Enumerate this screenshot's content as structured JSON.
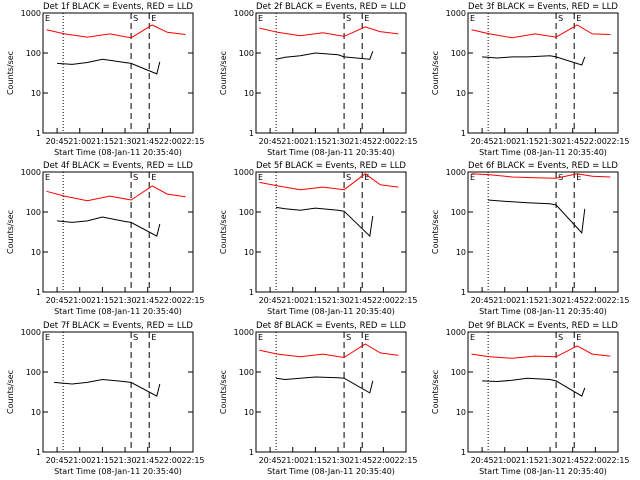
{
  "common": {
    "xlabel": "Start Time (08-Jan-11 20:35:40)",
    "ylabel": "Counts/sec",
    "ytick_labels": [
      "1000",
      "100",
      "10",
      "1"
    ],
    "xtick_labels": [
      "20:45",
      "21:00",
      "21:15",
      "21:30",
      "21:45",
      "22:00",
      "22:15"
    ],
    "colors": {
      "events": "#000000",
      "lld": "#ff0000"
    },
    "x_range": [
      "20:35:40",
      "22:15"
    ],
    "y_range": [
      1,
      1000
    ],
    "y_scale": "log",
    "markers": [
      "E",
      "S",
      "E"
    ]
  },
  "chart_data": [
    {
      "type": "line",
      "title": "Det 1f BLACK = Events, RED = LLD",
      "series": [
        {
          "x": [
            "20:38",
            "20:50",
            "21:05",
            "21:20",
            "21:34",
            "21:48",
            "21:58",
            "22:10"
          ],
          "y": [
            380,
            300,
            250,
            300,
            240,
            500,
            330,
            290
          ]
        },
        {
          "x": [
            "20:45",
            "20:55",
            "21:05",
            "21:15",
            "21:30",
            "21:34",
            "21:51",
            "21:53"
          ],
          "y": [
            55,
            52,
            58,
            70,
            58,
            55,
            30,
            60
          ]
        }
      ]
    },
    {
      "type": "line",
      "title": "Det 2f BLACK = Events, RED = LLD",
      "series": [
        {
          "x": [
            "20:38",
            "20:50",
            "21:05",
            "21:20",
            "21:34",
            "21:48",
            "21:58",
            "22:10"
          ],
          "y": [
            420,
            330,
            270,
            320,
            260,
            450,
            340,
            300
          ]
        },
        {
          "x": [
            "20:49",
            "20:55",
            "21:05",
            "21:15",
            "21:30",
            "21:34",
            "21:51",
            "21:53"
          ],
          "y": [
            70,
            78,
            85,
            100,
            90,
            80,
            70,
            110
          ]
        }
      ]
    },
    {
      "type": "line",
      "title": "Det 3f BLACK = Events, RED = LLD",
      "series": [
        {
          "x": [
            "20:38",
            "20:50",
            "21:05",
            "21:20",
            "21:34",
            "21:48",
            "21:58",
            "22:10"
          ],
          "y": [
            380,
            300,
            240,
            300,
            250,
            500,
            300,
            290
          ]
        },
        {
          "x": [
            "20:45",
            "20:55",
            "21:05",
            "21:15",
            "21:30",
            "21:34",
            "21:51",
            "21:53"
          ],
          "y": [
            80,
            75,
            80,
            80,
            85,
            80,
            50,
            80
          ]
        }
      ]
    },
    {
      "type": "line",
      "title": "Det 4f BLACK = Events, RED = LLD",
      "series": [
        {
          "x": [
            "20:38",
            "20:50",
            "21:05",
            "21:20",
            "21:34",
            "21:48",
            "21:58",
            "22:10"
          ],
          "y": [
            330,
            250,
            190,
            250,
            200,
            450,
            280,
            240
          ]
        },
        {
          "x": [
            "20:45",
            "20:55",
            "21:05",
            "21:15",
            "21:30",
            "21:34",
            "21:51",
            "21:53"
          ],
          "y": [
            60,
            55,
            60,
            75,
            58,
            55,
            25,
            50
          ]
        }
      ]
    },
    {
      "type": "line",
      "title": "Det 5f BLACK = Events, RED = LLD",
      "series": [
        {
          "x": [
            "20:38",
            "20:50",
            "21:05",
            "21:20",
            "21:34",
            "21:48",
            "21:58",
            "22:10"
          ],
          "y": [
            550,
            450,
            360,
            420,
            360,
            900,
            480,
            420
          ]
        },
        {
          "x": [
            "20:49",
            "20:55",
            "21:05",
            "21:15",
            "21:30",
            "21:34",
            "21:51",
            "21:53"
          ],
          "y": [
            130,
            120,
            110,
            125,
            110,
            105,
            25,
            80
          ]
        }
      ]
    },
    {
      "type": "line",
      "title": "Det 6f BLACK = Events, RED = LLD",
      "series": [
        {
          "x": [
            "20:38",
            "20:50",
            "21:05",
            "21:20",
            "21:34",
            "21:48",
            "21:58",
            "22:10"
          ],
          "y": [
            900,
            850,
            750,
            720,
            700,
            900,
            780,
            750
          ]
        },
        {
          "x": [
            "20:49",
            "20:55",
            "21:05",
            "21:15",
            "21:30",
            "21:34",
            "21:51",
            "21:53"
          ],
          "y": [
            200,
            190,
            180,
            170,
            160,
            150,
            30,
            120
          ]
        }
      ]
    },
    {
      "type": "line",
      "title": "Det 7f BLACK = Events, RED = LLD",
      "series": [
        {
          "x": [
            "20:43",
            "20:55",
            "21:05",
            "21:15",
            "21:25",
            "21:34",
            "21:51",
            "21:53"
          ],
          "y": [
            55,
            50,
            55,
            65,
            60,
            55,
            25,
            50
          ]
        }
      ]
    },
    {
      "type": "line",
      "title": "Det 8f BLACK = Events, RED = LLD",
      "series": [
        {
          "x": [
            "20:38",
            "20:50",
            "21:05",
            "21:20",
            "21:34",
            "21:48",
            "21:58",
            "22:10"
          ],
          "y": [
            350,
            280,
            240,
            280,
            230,
            500,
            300,
            260
          ]
        },
        {
          "x": [
            "20:49",
            "20:55",
            "21:05",
            "21:15",
            "21:30",
            "21:34",
            "21:51",
            "21:53"
          ],
          "y": [
            70,
            65,
            70,
            75,
            72,
            70,
            30,
            60
          ]
        }
      ]
    },
    {
      "type": "line",
      "title": "Det 9f BLACK = Events, RED = LLD",
      "series": [
        {
          "x": [
            "20:38",
            "20:50",
            "21:05",
            "21:20",
            "21:34",
            "21:48",
            "21:58",
            "22:10"
          ],
          "y": [
            280,
            240,
            220,
            250,
            240,
            450,
            280,
            250
          ]
        },
        {
          "x": [
            "20:45",
            "20:55",
            "21:05",
            "21:15",
            "21:30",
            "21:34",
            "21:51",
            "21:53"
          ],
          "y": [
            60,
            58,
            62,
            70,
            65,
            60,
            25,
            40
          ]
        }
      ]
    }
  ]
}
